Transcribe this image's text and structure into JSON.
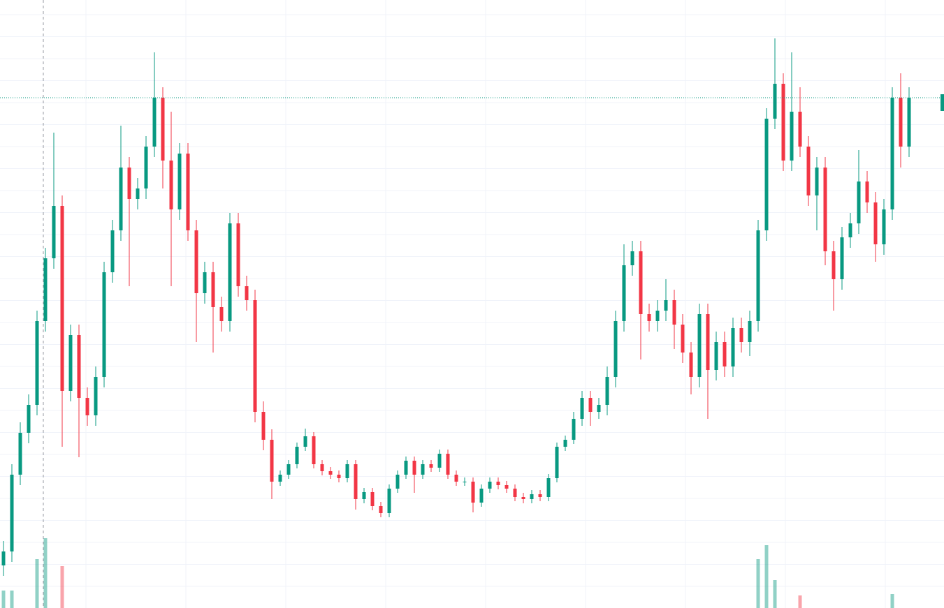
{
  "chart_data": {
    "type": "candlestick",
    "ylim": [
      0,
      871
    ],
    "volume_lim": [
      0,
      120
    ],
    "up_color": "#089981",
    "down_color": "#f23645",
    "open": [
      61,
      81,
      191,
      251,
      291,
      411,
      501,
      576,
      311,
      391,
      301,
      276,
      331,
      481,
      541,
      631,
      586,
      601,
      661,
      731,
      641,
      571,
      651,
      541,
      451,
      481,
      431,
      411,
      551,
      461,
      441,
      281,
      241,
      181,
      191,
      206,
      231,
      246,
      206,
      196,
      191,
      186,
      206,
      156,
      166,
      146,
      136,
      171,
      191,
      211,
      191,
      206,
      201,
      221,
      191,
      181,
      181,
      151,
      171,
      181,
      176,
      171,
      159,
      156,
      163,
      159,
      186,
      231,
      241,
      271,
      301,
      281,
      291,
      331,
      411,
      491,
      511,
      421,
      411,
      426,
      441,
      406,
      366,
      331,
      421,
      341,
      381,
      346,
      401,
      381,
      411,
      541,
      701,
      751,
      641,
      711,
      661,
      591,
      631,
      511,
      471,
      531,
      551,
      611,
      581,
      521,
      571,
      731,
      661
    ],
    "high": [
      96,
      206,
      266,
      306,
      426,
      516,
      681,
      591,
      406,
      406,
      316,
      346,
      496,
      556,
      691,
      646,
      616,
      676,
      796,
      746,
      711,
      666,
      666,
      556,
      496,
      496,
      446,
      566,
      566,
      476,
      456,
      296,
      256,
      197,
      212,
      237,
      257,
      252,
      212,
      202,
      197,
      212,
      212,
      172,
      172,
      152,
      177,
      197,
      217,
      217,
      212,
      212,
      227,
      227,
      197,
      187,
      187,
      177,
      187,
      187,
      182,
      177,
      165,
      169,
      169,
      192,
      237,
      247,
      281,
      311,
      311,
      301,
      346,
      426,
      521,
      526,
      526,
      436,
      441,
      471,
      456,
      421,
      381,
      436,
      436,
      396,
      396,
      416,
      416,
      426,
      556,
      716,
      816,
      766,
      796,
      746,
      676,
      646,
      646,
      526,
      546,
      566,
      656,
      626,
      596,
      586,
      746,
      766,
      746
    ],
    "low": [
      46,
      66,
      176,
      236,
      276,
      396,
      486,
      231,
      296,
      216,
      261,
      261,
      316,
      466,
      526,
      461,
      571,
      586,
      646,
      601,
      461,
      556,
      526,
      381,
      436,
      366,
      396,
      396,
      446,
      426,
      266,
      226,
      156,
      175,
      185,
      200,
      225,
      200,
      190,
      185,
      180,
      180,
      141,
      150,
      140,
      130,
      130,
      165,
      185,
      165,
      185,
      195,
      195,
      185,
      175,
      175,
      137,
      145,
      165,
      170,
      165,
      153,
      150,
      150,
      153,
      153,
      180,
      225,
      235,
      261,
      261,
      271,
      276,
      316,
      396,
      476,
      356,
      396,
      396,
      411,
      371,
      351,
      306,
      316,
      271,
      326,
      331,
      331,
      366,
      361,
      396,
      526,
      686,
      626,
      626,
      646,
      576,
      541,
      491,
      426,
      456,
      516,
      536,
      566,
      496,
      506,
      556,
      631,
      646
    ],
    "close": [
      81,
      191,
      251,
      291,
      411,
      501,
      576,
      311,
      391,
      301,
      276,
      331,
      481,
      541,
      631,
      586,
      601,
      661,
      731,
      641,
      571,
      651,
      541,
      451,
      481,
      431,
      411,
      551,
      461,
      441,
      281,
      241,
      181,
      191,
      206,
      231,
      246,
      206,
      196,
      191,
      186,
      206,
      156,
      166,
      146,
      136,
      171,
      191,
      211,
      191,
      206,
      201,
      221,
      191,
      181,
      181,
      151,
      171,
      181,
      176,
      171,
      159,
      156,
      163,
      159,
      186,
      231,
      241,
      271,
      301,
      281,
      291,
      331,
      411,
      491,
      511,
      421,
      411,
      426,
      441,
      406,
      366,
      331,
      421,
      341,
      381,
      346,
      401,
      381,
      411,
      541,
      701,
      751,
      641,
      711,
      661,
      591,
      631,
      511,
      471,
      531,
      551,
      611,
      581,
      521,
      571,
      731,
      661,
      731
    ],
    "volume": [
      25,
      25,
      0,
      0,
      70,
      100,
      0,
      60,
      0,
      0,
      0,
      0,
      0,
      0,
      0,
      0,
      0,
      0,
      0,
      0,
      0,
      0,
      0,
      0,
      0,
      0,
      0,
      0,
      0,
      0,
      0,
      0,
      0,
      0,
      0,
      0,
      0,
      0,
      0,
      0,
      0,
      0,
      0,
      0,
      0,
      0,
      0,
      0,
      0,
      0,
      0,
      0,
      0,
      0,
      0,
      0,
      0,
      0,
      0,
      0,
      0,
      0,
      0,
      0,
      0,
      0,
      0,
      0,
      0,
      0,
      0,
      0,
      0,
      0,
      0,
      0,
      0,
      0,
      0,
      0,
      0,
      0,
      0,
      0,
      0,
      0,
      0,
      0,
      0,
      0,
      70,
      90,
      40,
      0,
      0,
      18,
      0,
      0,
      0,
      0,
      0,
      0,
      0,
      0,
      0,
      0,
      20,
      0,
      0
    ]
  }
}
